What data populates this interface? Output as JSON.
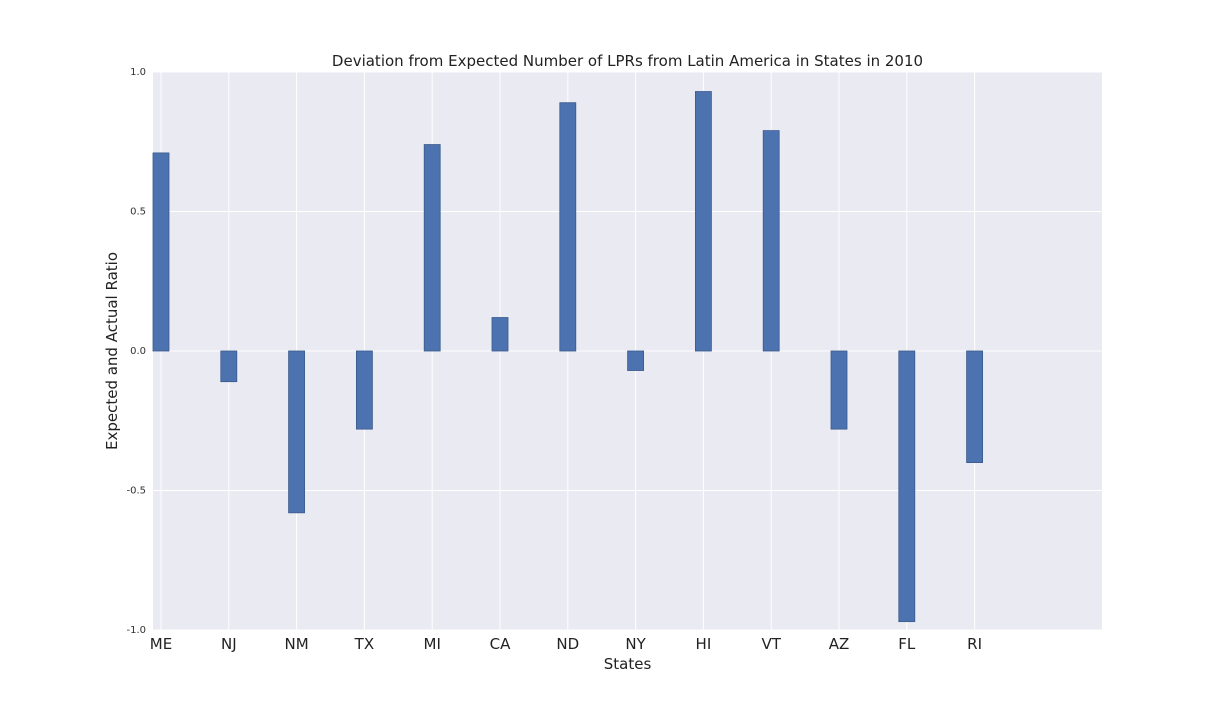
{
  "chart_data": {
    "type": "bar",
    "title": "Deviation from Expected Number of LPRs from Latin America in States in 2010",
    "xlabel": "States",
    "ylabel": "Expected and Actual Ratio",
    "categories": [
      "ME",
      "NJ",
      "NM",
      "TX",
      "MI",
      "CA",
      "ND",
      "NY",
      "HI",
      "VT",
      "AZ",
      "FL",
      "RI"
    ],
    "values": [
      0.71,
      -0.11,
      -0.58,
      -0.28,
      0.74,
      0.12,
      0.89,
      -0.07,
      0.93,
      0.79,
      -0.28,
      -0.97,
      -0.4
    ],
    "ylim": [
      -1.0,
      1.0
    ],
    "yticks": [
      "1.0",
      "0.5",
      "0.0",
      "-0.5",
      "-1.0"
    ],
    "ytick_values": [
      1.0,
      0.5,
      0.0,
      -0.5,
      -1.0
    ],
    "grid": true,
    "colors": {
      "bar": "#4c72b0",
      "bar_edge": "#3a5a8c",
      "plot_background": "#eaeaf2",
      "grid": "#ffffff"
    }
  }
}
